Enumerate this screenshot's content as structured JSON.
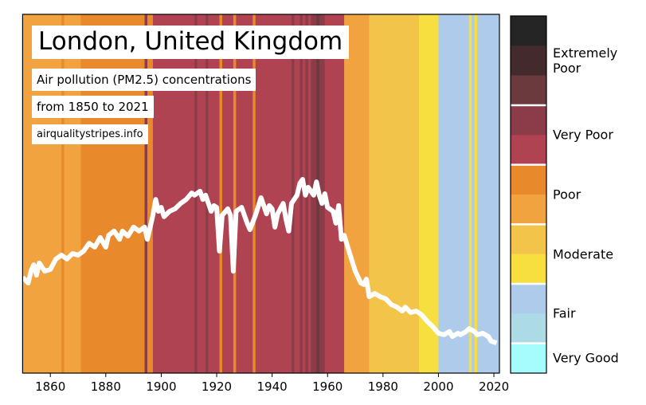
{
  "chart_data": {
    "type": "stripes",
    "title": "London, United Kingdom",
    "subtitle": "Air pollution (PM2.5) concentrations",
    "period": "from 1850 to 2021",
    "source": "airqualitystripes.info",
    "xlim": [
      1850,
      2022
    ],
    "xticks": [
      1860,
      1880,
      1900,
      1920,
      1940,
      1960,
      1980,
      2000,
      2020
    ],
    "ylim": [
      0,
      100
    ],
    "stripes": [
      {
        "start": 1850,
        "end": 1864,
        "color": "#f1a340"
      },
      {
        "start": 1864,
        "end": 1865,
        "color": "#e8892b"
      },
      {
        "start": 1865,
        "end": 1871,
        "color": "#f1a340"
      },
      {
        "start": 1871,
        "end": 1894,
        "color": "#e8892b"
      },
      {
        "start": 1894,
        "end": 1895,
        "color": "#8c3b48"
      },
      {
        "start": 1895,
        "end": 1897,
        "color": "#e8892b"
      },
      {
        "start": 1897,
        "end": 1912,
        "color": "#b04352"
      },
      {
        "start": 1912,
        "end": 1913,
        "color": "#8c3b48"
      },
      {
        "start": 1913,
        "end": 1916,
        "color": "#b04352"
      },
      {
        "start": 1916,
        "end": 1917,
        "color": "#8c3b48"
      },
      {
        "start": 1917,
        "end": 1921,
        "color": "#b04352"
      },
      {
        "start": 1921,
        "end": 1922,
        "color": "#e8892b"
      },
      {
        "start": 1922,
        "end": 1926,
        "color": "#b04352"
      },
      {
        "start": 1926,
        "end": 1927,
        "color": "#e8892b"
      },
      {
        "start": 1927,
        "end": 1933,
        "color": "#b04352"
      },
      {
        "start": 1933,
        "end": 1934,
        "color": "#e8892b"
      },
      {
        "start": 1934,
        "end": 1947,
        "color": "#b04352"
      },
      {
        "start": 1947,
        "end": 1948,
        "color": "#8c3b48"
      },
      {
        "start": 1948,
        "end": 1950,
        "color": "#b04352"
      },
      {
        "start": 1950,
        "end": 1951,
        "color": "#8c3b48"
      },
      {
        "start": 1951,
        "end": 1952,
        "color": "#b04352"
      },
      {
        "start": 1952,
        "end": 1953,
        "color": "#8c3b48"
      },
      {
        "start": 1953,
        "end": 1954,
        "color": "#b04352"
      },
      {
        "start": 1954,
        "end": 1956,
        "color": "#8c3b48"
      },
      {
        "start": 1956,
        "end": 1957,
        "color": "#6a3a3d"
      },
      {
        "start": 1957,
        "end": 1959,
        "color": "#8c3b48"
      },
      {
        "start": 1959,
        "end": 1966,
        "color": "#b04352"
      },
      {
        "start": 1966,
        "end": 1975,
        "color": "#f1a340"
      },
      {
        "start": 1975,
        "end": 1993,
        "color": "#f2c44a"
      },
      {
        "start": 1993,
        "end": 2000,
        "color": "#f7df3f"
      },
      {
        "start": 2000,
        "end": 2011,
        "color": "#aecbeb"
      },
      {
        "start": 2011,
        "end": 2012,
        "color": "#f7df3f"
      },
      {
        "start": 2012,
        "end": 2013,
        "color": "#aecbeb"
      },
      {
        "start": 2013,
        "end": 2014,
        "color": "#f7df3f"
      },
      {
        "start": 2014,
        "end": 2022,
        "color": "#aecbeb"
      }
    ],
    "line_color": "#ffffff",
    "x": [
      1850,
      1852,
      1853,
      1854,
      1855,
      1856,
      1858,
      1860,
      1862,
      1864,
      1866,
      1868,
      1870,
      1872,
      1874,
      1876,
      1878,
      1880,
      1881,
      1883,
      1885,
      1886,
      1888,
      1890,
      1892,
      1894,
      1895,
      1897,
      1898,
      1899,
      1900,
      1901,
      1903,
      1905,
      1907,
      1909,
      1911,
      1912,
      1914,
      1915,
      1916,
      1918,
      1919,
      1920,
      1921,
      1922,
      1924,
      1925,
      1926,
      1927,
      1929,
      1931,
      1932,
      1934,
      1936,
      1938,
      1939,
      1940,
      1941,
      1942,
      1944,
      1945,
      1946,
      1947,
      1949,
      1950,
      1951,
      1952,
      1953,
      1955,
      1956,
      1957,
      1958,
      1959,
      1960,
      1962,
      1963,
      1964,
      1965,
      1966,
      1968,
      1970,
      1972,
      1973,
      1974,
      1975,
      1977,
      1979,
      1981,
      1983,
      1985,
      1987,
      1988,
      1990,
      1992,
      1994,
      1996,
      1998,
      2000,
      2002,
      2004,
      2005,
      2007,
      2008,
      2010,
      2011,
      2013,
      2014,
      2016,
      2018,
      2019,
      2021
    ],
    "values": [
      26.7,
      25.1,
      28.4,
      30.2,
      27.3,
      30.7,
      28.4,
      28.9,
      31.8,
      32.9,
      31.8,
      33.3,
      32.9,
      34.0,
      36.2,
      35.1,
      37.8,
      35.1,
      38.4,
      39.6,
      37.3,
      39.6,
      38.2,
      40.7,
      39.6,
      40.7,
      37.3,
      44.0,
      48.4,
      45.1,
      46.2,
      43.6,
      45.1,
      45.8,
      47.3,
      48.4,
      50.2,
      49.6,
      50.7,
      48.4,
      49.6,
      45.1,
      46.7,
      46.2,
      34.0,
      44.0,
      45.8,
      44.0,
      28.4,
      45.1,
      46.2,
      41.8,
      40.0,
      44.0,
      48.9,
      44.4,
      46.7,
      45.8,
      40.7,
      44.4,
      47.3,
      42.9,
      39.6,
      47.3,
      49.6,
      52.9,
      54.0,
      49.6,
      51.8,
      49.6,
      53.3,
      49.6,
      47.3,
      50.0,
      46.2,
      45.1,
      41.8,
      46.7,
      37.3,
      38.4,
      33.3,
      28.4,
      25.1,
      24.7,
      26.2,
      21.3,
      22.2,
      21.3,
      20.7,
      19.1,
      18.4,
      17.3,
      18.4,
      16.9,
      17.3,
      16.2,
      14.4,
      12.9,
      11.1,
      10.7,
      11.6,
      10.2,
      11.1,
      10.7,
      11.6,
      12.4,
      11.6,
      10.7,
      11.1,
      10.2,
      8.9,
      8.4
    ],
    "legend": {
      "colors": [
        "#252525",
        "#432a2c",
        "#6a3a3d",
        "#8c3b48",
        "#b04352",
        "#e8892b",
        "#f1a340",
        "#f2c44a",
        "#f7df3f",
        "#aecbeb",
        "#acdbe6",
        "#a6fbfd"
      ],
      "groups": [
        {
          "label": "Extremely Poor",
          "from": 0,
          "to": 3
        },
        {
          "label": "Very Poor",
          "from": 3,
          "to": 5
        },
        {
          "label": "Poor",
          "from": 5,
          "to": 7
        },
        {
          "label": "Moderate",
          "from": 7,
          "to": 9
        },
        {
          "label": "Fair",
          "from": 9,
          "to": 11
        },
        {
          "label": "Very Good",
          "from": 11,
          "to": 12
        }
      ]
    }
  }
}
